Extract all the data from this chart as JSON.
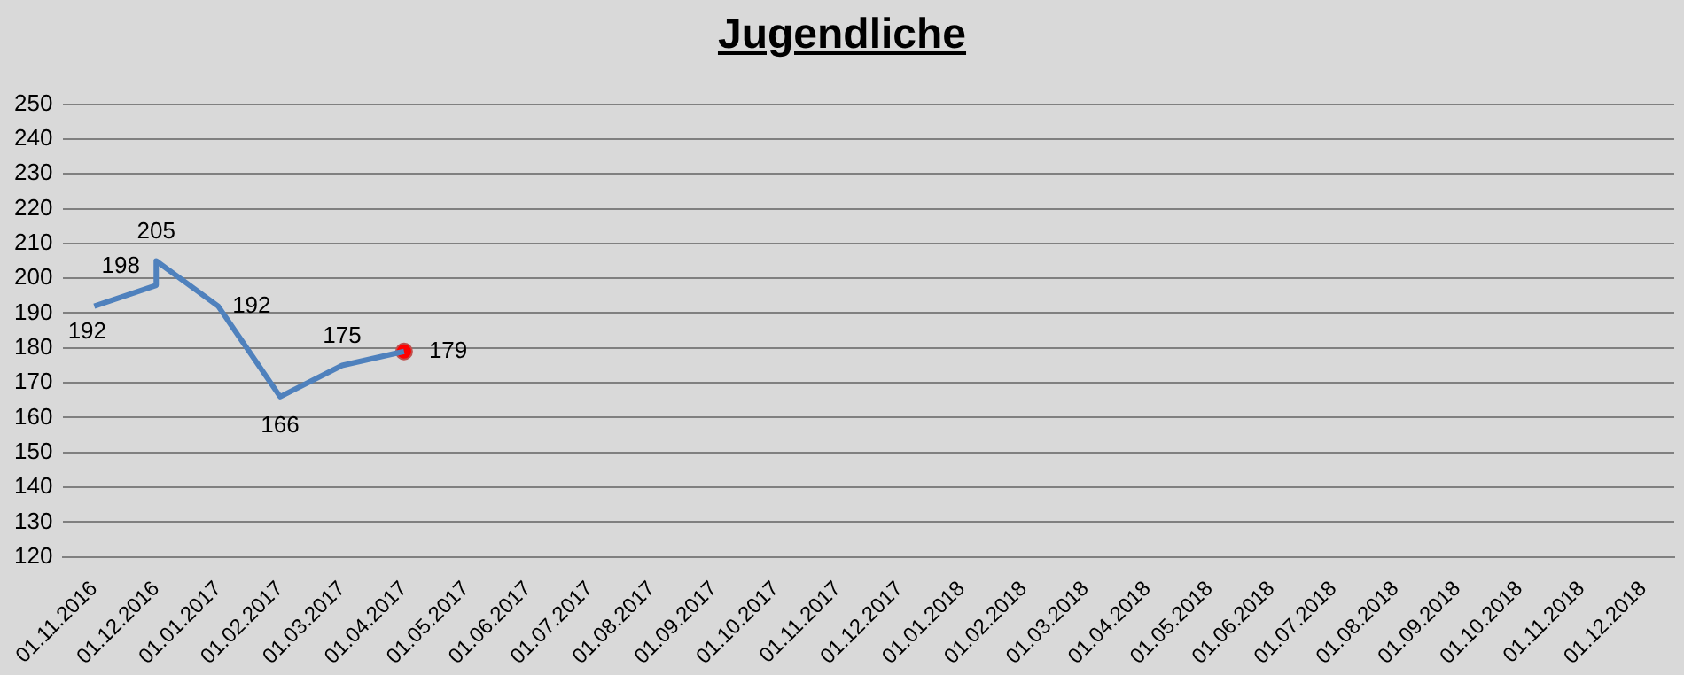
{
  "chart_data": {
    "type": "line",
    "title": "Jugendliche",
    "categories": [
      "01.11.2016",
      "01.12.2016",
      "01.01.2017",
      "01.02.2017",
      "01.03.2017",
      "01.04.2017",
      "01.05.2017",
      "01.06.2017",
      "01.07.2017",
      "01.08.2017",
      "01.09.2017",
      "01.10.2017",
      "01.11.2017",
      "01.12.2017",
      "01.01.2018",
      "01.02.2018",
      "01.03.2018",
      "01.04.2018",
      "01.05.2018",
      "01.06.2018",
      "01.07.2018",
      "01.08.2018",
      "01.09.2018",
      "01.10.2018",
      "01.11.2018",
      "01.12.2018"
    ],
    "series": [
      {
        "color": "#4f81bd",
        "marker": "none",
        "x": [
          "01.11.2016",
          "01.12.2016",
          "01.12.2016",
          "01.01.2017",
          "01.02.2017",
          "01.03.2017",
          "01.04.2017"
        ],
        "values": [
          192,
          198,
          205,
          192,
          166,
          175,
          179
        ]
      },
      {
        "type": "scatter",
        "color": "#ff0000",
        "marker": "circle",
        "x": [
          "01.04.2017"
        ],
        "values": [
          179
        ],
        "value_labels": [
          null
        ]
      }
    ],
    "ylim": [
      120,
      250
    ],
    "yticks": [
      120,
      130,
      140,
      150,
      160,
      170,
      180,
      190,
      200,
      210,
      220,
      230,
      240,
      250
    ],
    "grid": "y",
    "legend": false,
    "data_labels": true
  }
}
